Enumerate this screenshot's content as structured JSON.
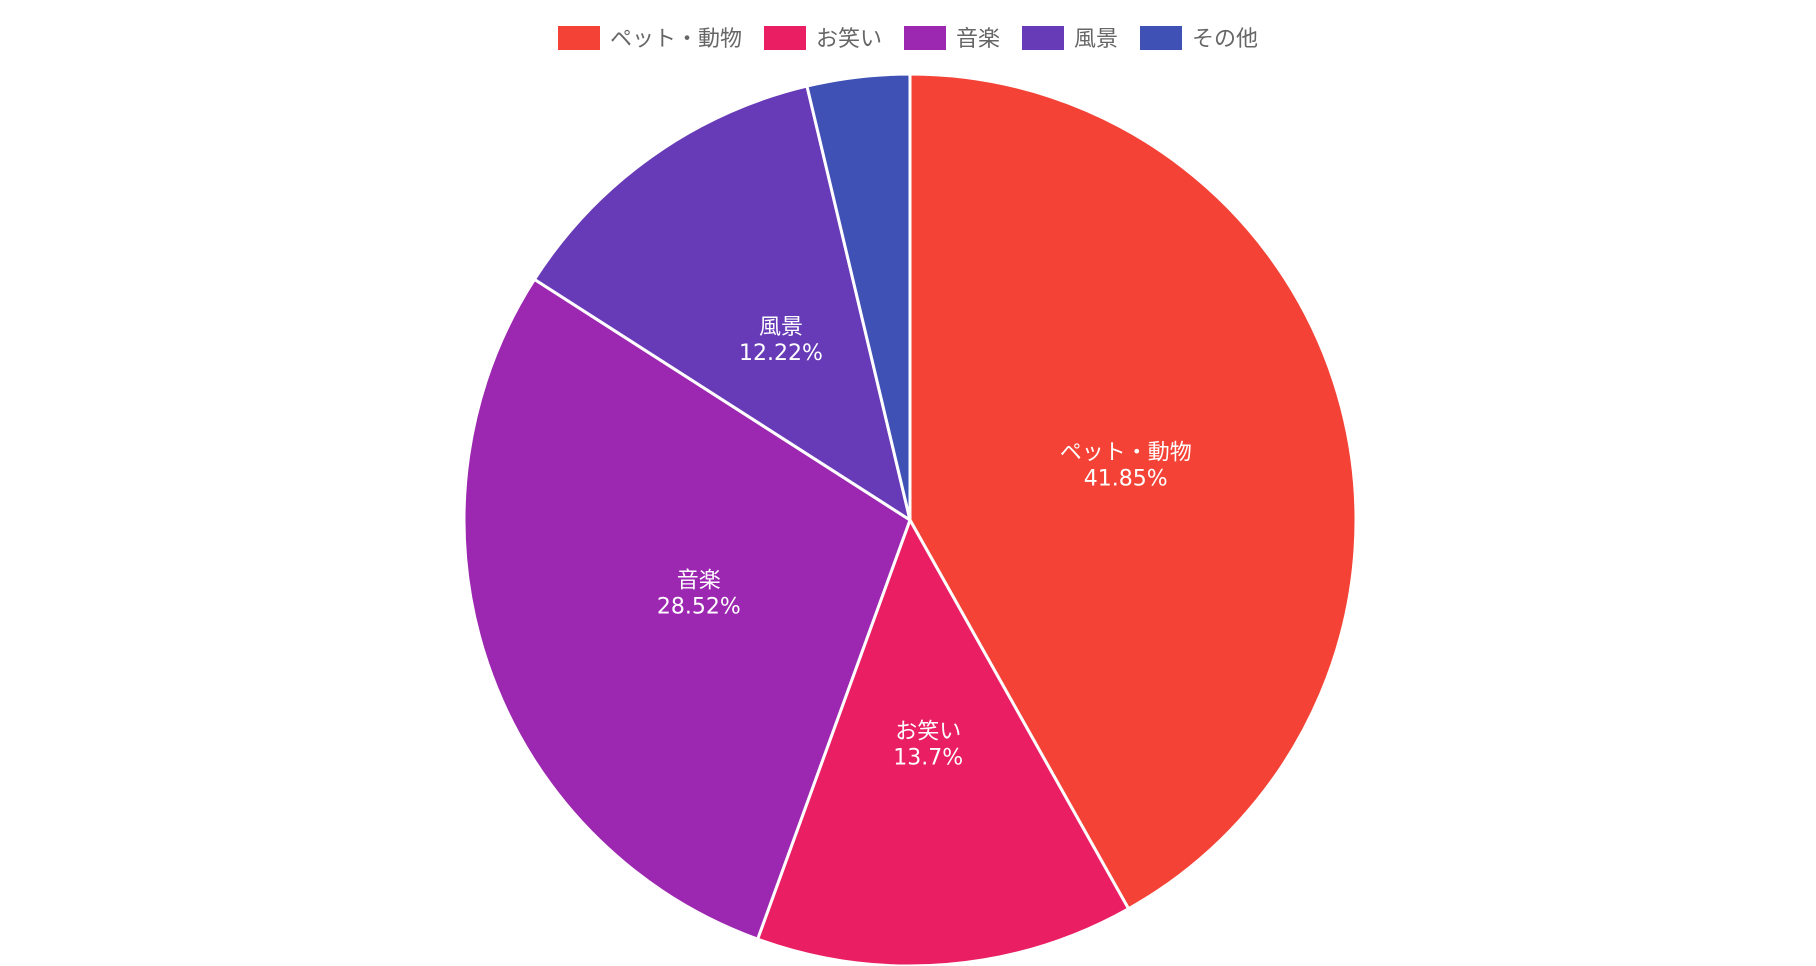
{
  "chart_data": {
    "type": "pie",
    "title": "",
    "legend_position": "top",
    "slices": [
      {
        "label": "ペット・動物",
        "value": 41.85,
        "display": "41.85%",
        "color": "#f44336"
      },
      {
        "label": "お笑い",
        "value": 13.7,
        "display": "13.7%",
        "color": "#e91e63"
      },
      {
        "label": "音楽",
        "value": 28.52,
        "display": "28.52%",
        "color": "#9c27b0"
      },
      {
        "label": "風景",
        "value": 12.22,
        "display": "12.22%",
        "color": "#673ab7"
      },
      {
        "label": "その他",
        "value": 3.71,
        "display": "",
        "color": "#3f51b5"
      }
    ]
  }
}
